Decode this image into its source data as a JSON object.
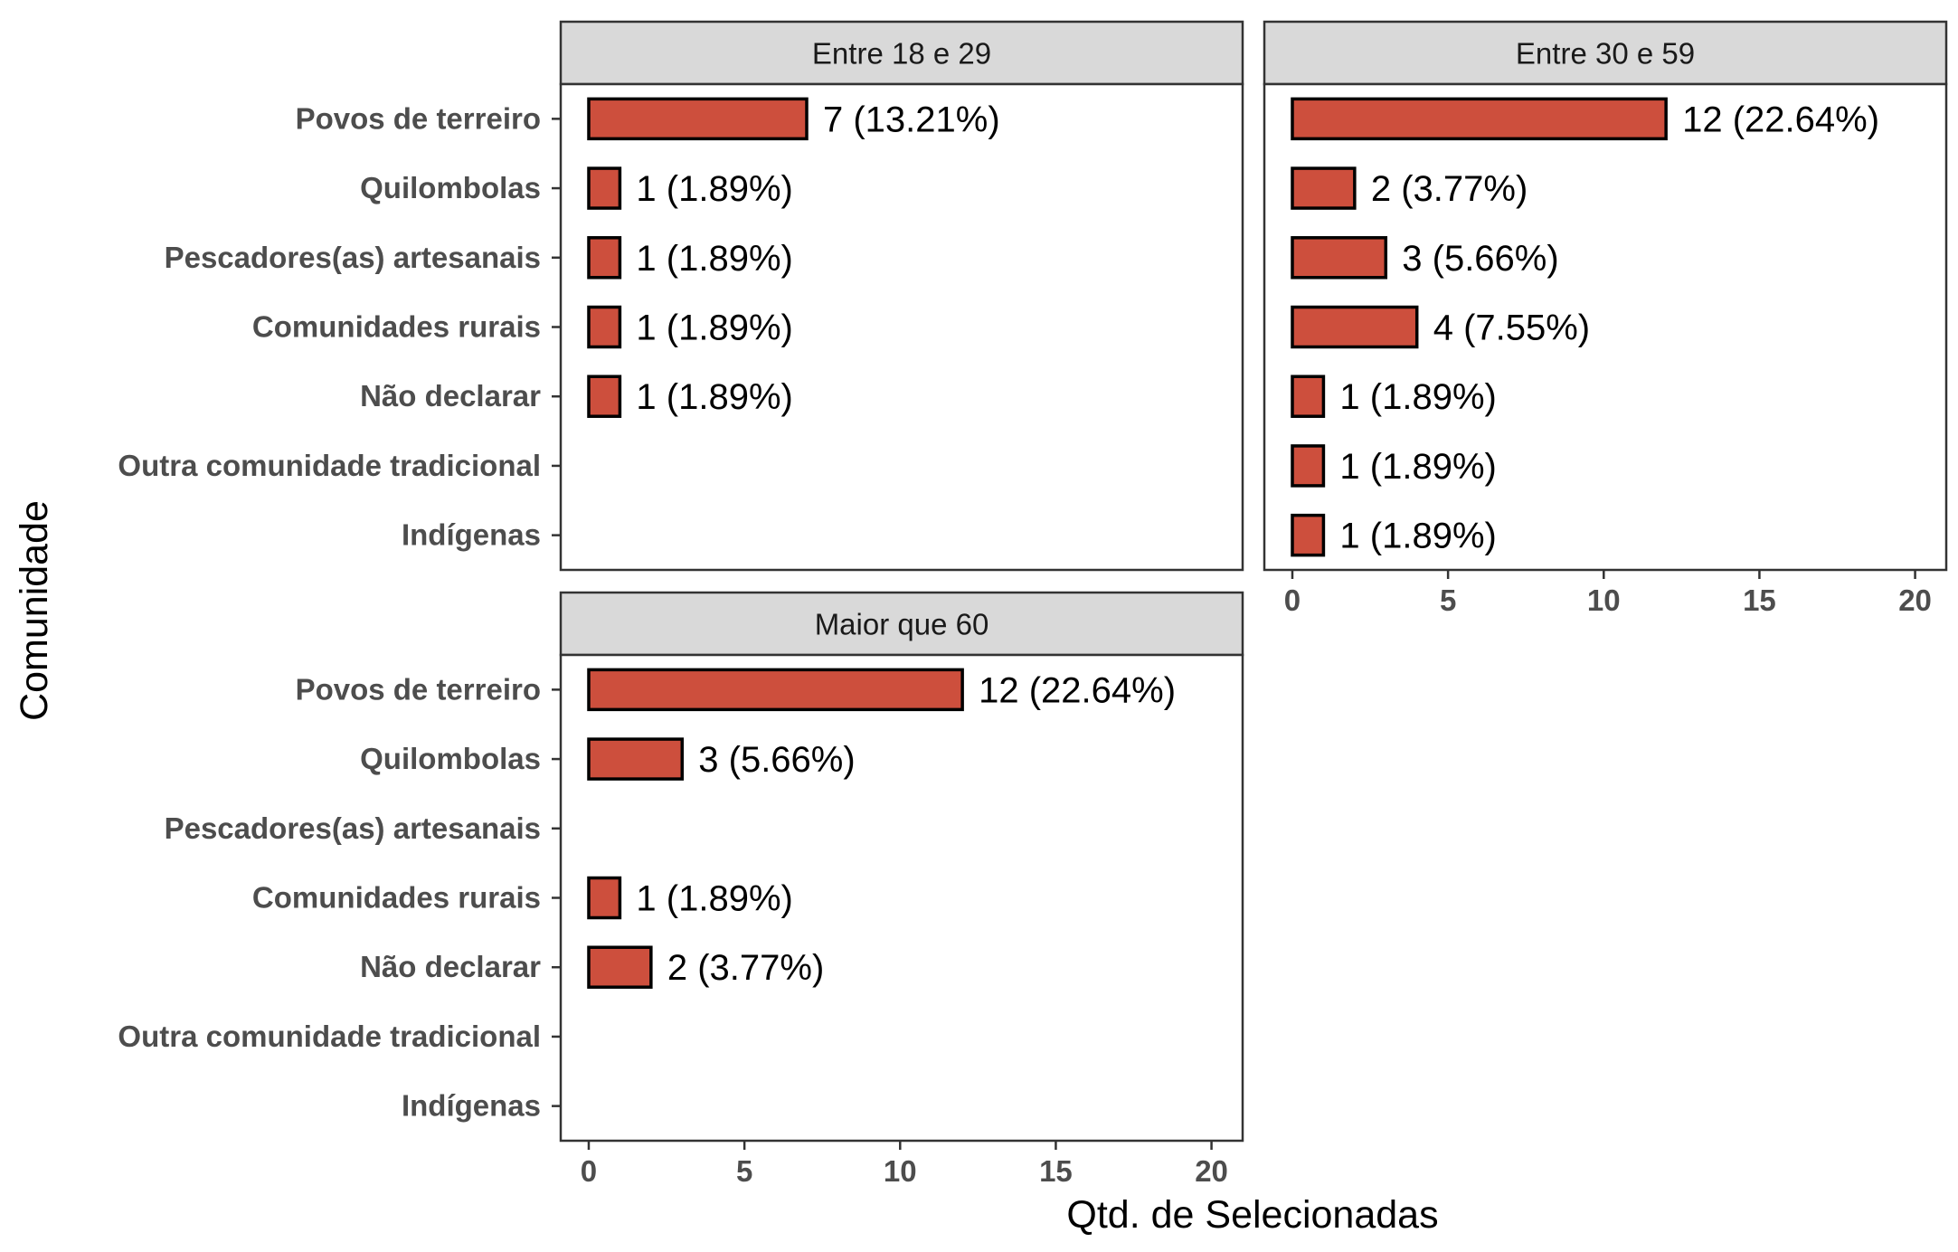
{
  "chart_data": {
    "type": "bar",
    "orientation": "horizontal",
    "xlabel": "Qtd. de Selecionadas",
    "ylabel": "Comunidade",
    "xlim": [
      -0.9,
      21
    ],
    "xticks": [
      0,
      5,
      10,
      15,
      20
    ],
    "categories": [
      "Povos de terreiro",
      "Quilombolas",
      "Pescadores(as) artesanais",
      "Comunidades rurais",
      "Não declarar",
      "Outra comunidade tradicional",
      "Indígenas"
    ],
    "bar_color": "#cd4f3d",
    "bar_border_color": "#000000",
    "strip_color": "#d9d9d9",
    "panels": [
      {
        "title": "Entre 18 e 29",
        "values": [
          7,
          1,
          1,
          1,
          1,
          null,
          null
        ],
        "labels": [
          "7 (13.21%)",
          "1 (1.89%)",
          "1 (1.89%)",
          "1 (1.89%)",
          "1 (1.89%)",
          "",
          ""
        ]
      },
      {
        "title": "Entre 30 e 59",
        "values": [
          12,
          2,
          3,
          4,
          1,
          1,
          1
        ],
        "labels": [
          "12 (22.64%)",
          "2 (3.77%)",
          "3 (5.66%)",
          "4 (7.55%)",
          "1 (1.89%)",
          "1 (1.89%)",
          "1 (1.89%)"
        ]
      },
      {
        "title": "Maior que 60",
        "values": [
          12,
          3,
          null,
          1,
          2,
          null,
          null
        ],
        "labels": [
          "12 (22.64%)",
          "3 (5.66%)",
          "",
          "1 (1.89%)",
          "2 (3.77%)",
          "",
          ""
        ]
      }
    ]
  }
}
